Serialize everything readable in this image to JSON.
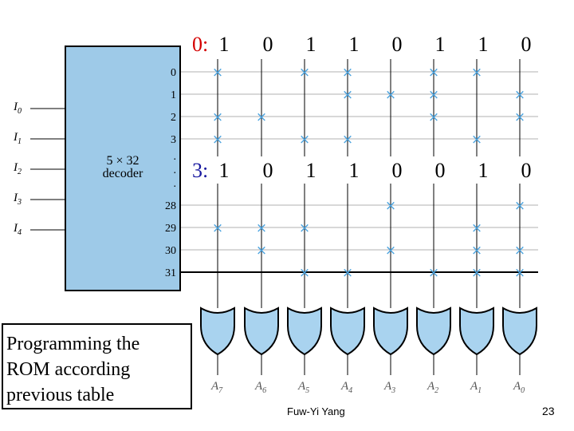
{
  "rows": [
    {
      "tag": "0:",
      "bits": [
        "1",
        "0",
        "1",
        "1",
        "0",
        "1",
        "1",
        "0"
      ]
    },
    {
      "tag": "3:",
      "bits": [
        "1",
        "0",
        "1",
        "1",
        "0",
        "0",
        "1",
        "0"
      ]
    }
  ],
  "colors": {
    "tag": "#d40000",
    "tag_alt": "#1a1aa0",
    "decoder_fill": "#9ecae8",
    "cross": "#4aa3df",
    "wire": "#000000",
    "grid_light": "#b0b0b0",
    "gate_fill": "#a9d3ef"
  },
  "decoder": {
    "title_lines": [
      "5 × 32",
      "decoder"
    ],
    "inputs": [
      {
        "base": "I",
        "sub": "0"
      },
      {
        "base": "I",
        "sub": "1"
      },
      {
        "base": "I",
        "sub": "2"
      },
      {
        "base": "I",
        "sub": "3"
      },
      {
        "base": "I",
        "sub": "4"
      }
    ],
    "output_labels": [
      "0",
      "1",
      "2",
      "3",
      ".",
      ".",
      ".",
      "28",
      "29",
      "30",
      "31"
    ]
  },
  "outputs": [
    {
      "base": "A",
      "sub": "7"
    },
    {
      "base": "A",
      "sub": "6"
    },
    {
      "base": "A",
      "sub": "5"
    },
    {
      "base": "A",
      "sub": "4"
    },
    {
      "base": "A",
      "sub": "3"
    },
    {
      "base": "A",
      "sub": "2"
    },
    {
      "base": "A",
      "sub": "1"
    },
    {
      "base": "A",
      "sub": "0"
    }
  ],
  "caption": "Programming the\nROM according\nprevious table",
  "author": "Fuw-Yi Yang",
  "page_number": "23",
  "cross_symbol": "×"
}
